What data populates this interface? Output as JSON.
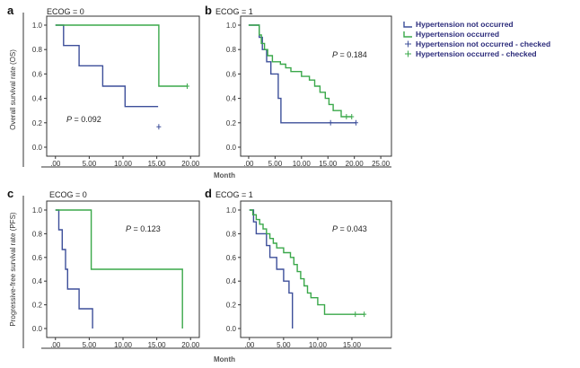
{
  "colors": {
    "not_occurred": "#3d4f9a",
    "occurred": "#3aa84a",
    "axis": "#333333"
  },
  "x_axis_label": "Month",
  "p_prefix": "P",
  "legend": {
    "items": [
      {
        "label": "Hypertension not occurred",
        "color": "#3d4f9a",
        "marker": "step"
      },
      {
        "label": "Hypertension occurred",
        "color": "#3aa84a",
        "marker": "step"
      },
      {
        "label": "Hypertension not occurred - checked",
        "color": "#3d4f9a",
        "marker": "plus"
      },
      {
        "label": "Hypertension occurred - checked",
        "color": "#3aa84a",
        "marker": "plus"
      }
    ]
  },
  "chart_data": [
    {
      "type": "line",
      "panel": "a",
      "title": "ECOG = 0",
      "ylabel": "Overall survival rate (OS)",
      "ylim": [
        0,
        1
      ],
      "xlim": [
        -0.5,
        20.5
      ],
      "y_ticks": [
        0.0,
        0.2,
        0.4,
        0.6,
        0.8,
        1.0
      ],
      "y_tick_labels": [
        "0.0",
        "0.2",
        "0.4",
        "0.6",
        "0.8",
        "1.0"
      ],
      "x_ticks": [
        0,
        5,
        10,
        15,
        20
      ],
      "x_tick_labels": [
        ".00",
        "5.00",
        "10.00",
        "15.00",
        "20.00"
      ],
      "p_value": "= 0.092",
      "series": [
        {
          "key": "not_occurred",
          "x": [
            0,
            1.2,
            1.2,
            3.5,
            3.5,
            7,
            7,
            10.3,
            10.3,
            15.2
          ],
          "y": [
            1,
            1,
            0.833,
            0.833,
            0.667,
            0.667,
            0.5,
            0.5,
            0.333,
            0.333
          ],
          "censored": [
            [
              15.3,
              0.167
            ]
          ]
        },
        {
          "key": "occurred",
          "x": [
            0,
            15.3,
            15.3,
            19.5
          ],
          "y": [
            1,
            1,
            0.5,
            0.5
          ],
          "censored": [
            [
              19.5,
              0.5
            ]
          ]
        }
      ]
    },
    {
      "type": "line",
      "panel": "b",
      "title": "ECOG = 1",
      "ylabel": "",
      "ylim": [
        0,
        1
      ],
      "xlim": [
        -0.5,
        26
      ],
      "y_ticks": [
        0.0,
        0.2,
        0.4,
        0.6,
        0.8,
        1.0
      ],
      "y_tick_labels": [
        "0.0",
        "0.2",
        "0.4",
        "0.6",
        "0.8",
        "1.0"
      ],
      "x_ticks": [
        0,
        5,
        10,
        15,
        20,
        25
      ],
      "x_tick_labels": [
        ".00",
        "5.00",
        "10.00",
        "15.00",
        "20.00",
        "25.00"
      ],
      "p_value": "= 0.184",
      "series": [
        {
          "key": "not_occurred",
          "x": [
            0,
            2,
            2,
            2.6,
            2.6,
            3.4,
            3.4,
            4.2,
            4.2,
            5.6,
            5.6,
            6.1,
            6.1,
            20.3
          ],
          "y": [
            1,
            1,
            0.9,
            0.9,
            0.8,
            0.8,
            0.7,
            0.7,
            0.6,
            0.6,
            0.4,
            0.4,
            0.2,
            0.2
          ],
          "censored": [
            [
              20.3,
              0.2
            ],
            [
              15.5,
              0.2
            ]
          ]
        },
        {
          "key": "occurred",
          "x": [
            0,
            2,
            2,
            2.4,
            2.4,
            3,
            3,
            3.6,
            3.6,
            4.5,
            4.5,
            6,
            6,
            7,
            7,
            8,
            8,
            10,
            10,
            11.5,
            11.5,
            12.5,
            12.5,
            13.5,
            13.5,
            14.5,
            14.5,
            15.2,
            15.2,
            16,
            16,
            17.5,
            17.5,
            19.5
          ],
          "y": [
            1,
            1,
            0.92,
            0.92,
            0.85,
            0.85,
            0.8,
            0.8,
            0.75,
            0.75,
            0.7,
            0.7,
            0.68,
            0.68,
            0.65,
            0.65,
            0.62,
            0.62,
            0.58,
            0.58,
            0.55,
            0.55,
            0.5,
            0.5,
            0.45,
            0.45,
            0.4,
            0.4,
            0.35,
            0.35,
            0.3,
            0.3,
            0.25,
            0.25
          ],
          "censored": [
            [
              18.5,
              0.25
            ],
            [
              19.5,
              0.25
            ]
          ]
        }
      ]
    },
    {
      "type": "line",
      "panel": "c",
      "title": "ECOG = 0",
      "ylabel": "Progressive-free survival rate (PFS)",
      "ylim": [
        0,
        1
      ],
      "xlim": [
        -0.5,
        20.5
      ],
      "y_ticks": [
        0.0,
        0.2,
        0.4,
        0.6,
        0.8,
        1.0
      ],
      "y_tick_labels": [
        "0.0",
        "0.2",
        "0.4",
        "0.6",
        "0.8",
        "1.0"
      ],
      "x_ticks": [
        0,
        5,
        10,
        15,
        20
      ],
      "x_tick_labels": [
        ".00",
        "5.00",
        "10.00",
        "15.00",
        "20.00"
      ],
      "p_value": "= 0.123",
      "series": [
        {
          "key": "not_occurred",
          "x": [
            0,
            0.5,
            0.5,
            1,
            1,
            1.5,
            1.5,
            1.8,
            1.8,
            2,
            2,
            3.5,
            3.5,
            5.5,
            5.5
          ],
          "y": [
            1,
            1,
            0.833,
            0.833,
            0.667,
            0.667,
            0.5,
            0.5,
            0.333,
            0.333,
            0.333,
            0.333,
            0.167,
            0.167,
            0
          ],
          "censored": []
        },
        {
          "key": "occurred",
          "x": [
            0,
            5.3,
            5.3,
            18.8,
            18.8
          ],
          "y": [
            1,
            1,
            0.5,
            0.5,
            0
          ],
          "censored": []
        }
      ]
    },
    {
      "type": "line",
      "panel": "d",
      "title": "ECOG = 1",
      "ylabel": "",
      "ylim": [
        0,
        1
      ],
      "xlim": [
        -0.5,
        20
      ],
      "y_ticks": [
        0.0,
        0.2,
        0.4,
        0.6,
        0.8,
        1.0
      ],
      "y_tick_labels": [
        "0.0",
        "0.2",
        "0.4",
        "0.6",
        "0.8",
        "1.0"
      ],
      "x_ticks": [
        0,
        5,
        10,
        15
      ],
      "x_tick_labels": [
        ".00",
        "5.00",
        "10.00",
        "15.00"
      ],
      "p_value": "= 0.043",
      "series": [
        {
          "key": "not_occurred",
          "x": [
            0,
            0.6,
            0.6,
            1,
            1,
            2.5,
            2.5,
            3,
            3,
            4,
            4,
            5,
            5,
            5.8,
            5.8,
            6.3,
            6.3
          ],
          "y": [
            1,
            1,
            0.9,
            0.9,
            0.8,
            0.8,
            0.7,
            0.7,
            0.6,
            0.6,
            0.5,
            0.5,
            0.4,
            0.4,
            0.3,
            0.3,
            0
          ],
          "censored": []
        },
        {
          "key": "occurred",
          "x": [
            0,
            0.5,
            0.5,
            1,
            1,
            1.5,
            1.5,
            2,
            2,
            2.5,
            2.5,
            3,
            3,
            3.5,
            3.5,
            4,
            4,
            5,
            5,
            6,
            6,
            6.5,
            6.5,
            7,
            7,
            7.5,
            7.5,
            8,
            8,
            8.5,
            8.5,
            9,
            9,
            10,
            10,
            11,
            11,
            16.8
          ],
          "y": [
            1,
            1,
            0.96,
            0.96,
            0.92,
            0.92,
            0.88,
            0.88,
            0.84,
            0.84,
            0.8,
            0.8,
            0.76,
            0.76,
            0.72,
            0.72,
            0.68,
            0.68,
            0.64,
            0.64,
            0.6,
            0.6,
            0.54,
            0.54,
            0.48,
            0.48,
            0.42,
            0.42,
            0.36,
            0.36,
            0.3,
            0.3,
            0.26,
            0.26,
            0.2,
            0.2,
            0.12,
            0.12
          ],
          "censored": [
            [
              15.5,
              0.12
            ],
            [
              16.8,
              0.12
            ]
          ]
        }
      ]
    }
  ]
}
